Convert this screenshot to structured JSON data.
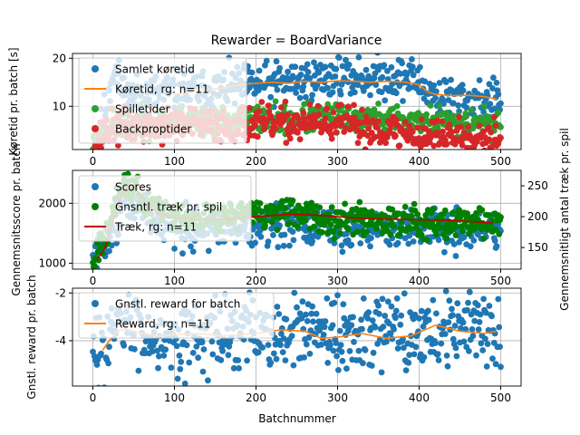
{
  "chart_data": {
    "type": "scatter",
    "title": "Rewarder = BoardVariance",
    "xlabel": "Batchnummer",
    "x_ticks": [
      0,
      100,
      200,
      300,
      400,
      500
    ],
    "xlim": [
      -25,
      525
    ],
    "colors": {
      "blue": "#1f77b4",
      "orange": "#ff7f0e",
      "green": "#2ca02c",
      "red": "#d62728",
      "darkgreen": "#008000",
      "darkred": "#c00000"
    },
    "panels": [
      {
        "ylabel": "Køretid pr. batch [s]",
        "ylim": [
          1,
          21
        ],
        "y_ticks": [
          10,
          20
        ],
        "grid": true,
        "legend_position": "upper-left",
        "legend": [
          {
            "label": "Samlet køretid",
            "kind": "dot",
            "color": "#1f77b4"
          },
          {
            "label": "Køretid, rg: n=11",
            "kind": "line",
            "color": "#ff7f0e"
          },
          {
            "label": "Spilletider",
            "kind": "dot",
            "color": "#2ca02c"
          },
          {
            "label": "Backproptider",
            "kind": "dot",
            "color": "#d62728"
          }
        ],
        "series": [
          {
            "name": "Samlet køretid",
            "kind": "scatter",
            "color": "#1f77b4",
            "seed": 11,
            "segments": [
              [
                0,
                2.5
              ],
              [
                10,
                5
              ],
              [
                25,
                18
              ],
              [
                40,
                12
              ],
              [
                100,
                13
              ],
              [
                180,
                14
              ],
              [
                300,
                16
              ],
              [
                390,
                16
              ],
              [
                420,
                12
              ],
              [
                500,
                11
              ]
            ],
            "noise": 2.2
          },
          {
            "name": "Spilletider",
            "kind": "scatter",
            "color": "#2ca02c",
            "seed": 23,
            "segments": [
              [
                0,
                2
              ],
              [
                20,
                6
              ],
              [
                100,
                7
              ],
              [
                300,
                7.5
              ],
              [
                500,
                6.5
              ]
            ],
            "noise": 1.5
          },
          {
            "name": "Backproptider",
            "kind": "scatter",
            "color": "#d62728",
            "seed": 37,
            "segments": [
              [
                0,
                1.8
              ],
              [
                20,
                5.5
              ],
              [
                100,
                6
              ],
              [
                300,
                6.5
              ],
              [
                400,
                4
              ],
              [
                500,
                4
              ]
            ],
            "noise": 1.8
          },
          {
            "name": "Køretid, rg: n=11",
            "kind": "line",
            "color": "#ff7f0e",
            "x": [
              100,
              120,
              140,
              160,
              180,
              200,
              220,
              240,
              260,
              280,
              300,
              320,
              340,
              360,
              380,
              400,
              410,
              420,
              440,
              460,
              480,
              495
            ],
            "y": [
              12.5,
              13,
              13.5,
              13.8,
              14.5,
              14.8,
              15,
              14.8,
              15.2,
              15,
              15.3,
              15.2,
              15,
              15.2,
              15.1,
              14.5,
              13,
              12.5,
              12.2,
              12.3,
              12,
              11.5
            ]
          }
        ]
      },
      {
        "ylabel": "Gennemsnitsscore pr. batch",
        "ylim": [
          900,
          2550
        ],
        "y_ticks": [
          1000,
          2000
        ],
        "grid": true,
        "legend_position": "upper-left",
        "legend": [
          {
            "label": "Scores",
            "kind": "dot",
            "color": "#1f77b4"
          },
          {
            "label": "Gnsntl. træk pr. spil",
            "kind": "dot",
            "color": "#008000"
          },
          {
            "label": "Træk, rg: n=11",
            "kind": "line",
            "color": "#c00000"
          }
        ],
        "right_axis": {
          "ylabel": "Gennemsnitligt antal træk pr. spil",
          "ylim": [
            115,
            275
          ],
          "y_ticks": [
            150,
            200,
            250
          ]
        },
        "series": [
          {
            "name": "Scores",
            "kind": "scatter",
            "color": "#1f77b4",
            "seed": 51,
            "segments": [
              [
                0,
                1000
              ],
              [
                20,
                1500
              ],
              [
                40,
                2000
              ],
              [
                60,
                1900
              ],
              [
                100,
                1600
              ],
              [
                200,
                1600
              ],
              [
                500,
                1550
              ]
            ],
            "noise": 170
          },
          {
            "name": "Gnsntl. træk pr. spil",
            "kind": "scatter",
            "color": "#008000",
            "seed": 67,
            "axis": "right",
            "segments": [
              [
                0,
                130
              ],
              [
                20,
                190
              ],
              [
                40,
                255
              ],
              [
                60,
                225
              ],
              [
                100,
                200
              ],
              [
                200,
                205
              ],
              [
                300,
                198
              ],
              [
                500,
                190
              ]
            ],
            "noise": 12
          },
          {
            "name": "Træk, rg: n=11",
            "kind": "line",
            "color": "#c00000",
            "axis": "right",
            "x": [
              5,
              15,
              25,
              35,
              45,
              55,
              65,
              80,
              100,
              130,
              160,
              200,
              240,
              280,
              320,
              360,
              400,
              440,
              490
            ],
            "y": [
              130,
              150,
              195,
              235,
              252,
              240,
              220,
              205,
              198,
              195,
              196,
              200,
              204,
              202,
              198,
              196,
              195,
              194,
              190
            ]
          }
        ]
      },
      {
        "ylabel": "Gnstl. reward pr. batch",
        "ylim": [
          -5.9,
          -1.8
        ],
        "y_ticks": [
          -4,
          -2
        ],
        "grid": true,
        "legend_position": "upper-left",
        "legend": [
          {
            "label": "Gnstl. reward for batch",
            "kind": "dot",
            "color": "#1f77b4"
          },
          {
            "label": "Reward, rg: n=11",
            "kind": "line",
            "color": "#ff7f0e"
          }
        ],
        "series": [
          {
            "name": "Gnstl. reward for batch",
            "kind": "scatter",
            "color": "#1f77b4",
            "seed": 83,
            "segments": [
              [
                0,
                -4.8
              ],
              [
                20,
                -3.8
              ],
              [
                40,
                -3.3
              ],
              [
                60,
                -3.6
              ],
              [
                100,
                -3.8
              ],
              [
                200,
                -3.7
              ],
              [
                300,
                -3.8
              ],
              [
                400,
                -3.6
              ],
              [
                500,
                -3.3
              ]
            ],
            "noise": 0.75
          },
          {
            "name": "Reward, rg: n=11",
            "kind": "line",
            "color": "#ff7f0e",
            "x": [
              12,
              20,
              30,
              40,
              50,
              60,
              80,
              100,
              130,
              160,
              200,
              230,
              260,
              280,
              300,
              330,
              360,
              390,
              420,
              450,
              480,
              495
            ],
            "y": [
              -4.4,
              -4.0,
              -3.6,
              -3.5,
              -3.6,
              -3.7,
              -3.8,
              -3.75,
              -3.7,
              -3.8,
              -3.7,
              -3.55,
              -3.6,
              -3.9,
              -3.85,
              -3.7,
              -3.9,
              -3.8,
              -3.35,
              -3.6,
              -3.7,
              -3.6
            ]
          }
        ]
      }
    ]
  }
}
